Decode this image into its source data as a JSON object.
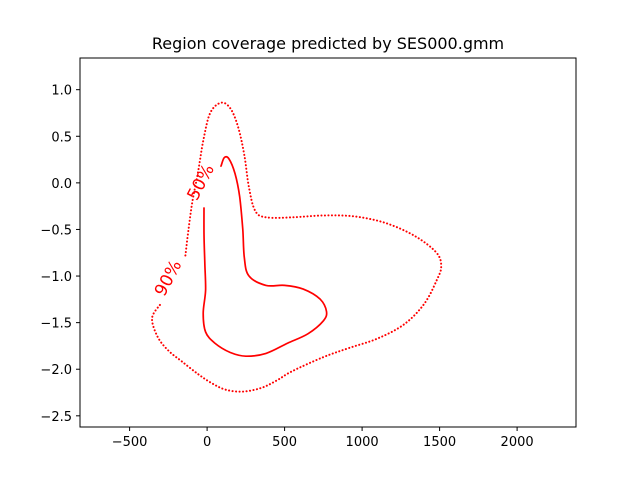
{
  "chart_data": {
    "type": "line",
    "title": "Region coverage predicted by SES000.gmm",
    "xlabel": "",
    "ylabel": "",
    "xlim": [
      -820,
      2380
    ],
    "ylim": [
      -2.62,
      1.34
    ],
    "x_ticks": [
      -500,
      0,
      500,
      1000,
      1500,
      2000
    ],
    "x_tick_labels": [
      "−500",
      "0",
      "500",
      "1000",
      "1500",
      "2000"
    ],
    "y_ticks": [
      1.0,
      0.5,
      0.0,
      -0.5,
      -1.0,
      -1.5,
      -2.0,
      -2.5
    ],
    "y_tick_labels": [
      "1.0",
      "0.5",
      "0.0",
      "−0.5",
      "−1.0",
      "−1.5",
      "−2.0",
      "−2.5"
    ],
    "grid": false,
    "line_color": "#ff0000",
    "series": [
      {
        "label": "50%",
        "style": "solid",
        "label_at": [
          -10,
          -0.02
        ],
        "points": [
          [
            -20,
            -0.27
          ],
          [
            -20,
            -0.55
          ],
          [
            -15,
            -0.85
          ],
          [
            -10,
            -1.15
          ],
          [
            -25,
            -1.4
          ],
          [
            -10,
            -1.6
          ],
          [
            50,
            -1.72
          ],
          [
            150,
            -1.82
          ],
          [
            250,
            -1.86
          ],
          [
            380,
            -1.83
          ],
          [
            520,
            -1.72
          ],
          [
            650,
            -1.62
          ],
          [
            750,
            -1.48
          ],
          [
            770,
            -1.38
          ],
          [
            730,
            -1.25
          ],
          [
            620,
            -1.14
          ],
          [
            500,
            -1.1
          ],
          [
            380,
            -1.1
          ],
          [
            270,
            -1.0
          ],
          [
            240,
            -0.8
          ],
          [
            230,
            -0.5
          ],
          [
            210,
            -0.15
          ],
          [
            180,
            0.1
          ],
          [
            140,
            0.26
          ],
          [
            110,
            0.27
          ],
          [
            90,
            0.18
          ]
        ]
      },
      {
        "label": "90%",
        "style": "dotted",
        "label_at": [
          -220,
          -1.05
        ],
        "points": [
          [
            -140,
            -0.78
          ],
          [
            -120,
            -0.5
          ],
          [
            -95,
            -0.2
          ],
          [
            -60,
            0.1
          ],
          [
            -25,
            0.45
          ],
          [
            20,
            0.75
          ],
          [
            90,
            0.86
          ],
          [
            150,
            0.8
          ],
          [
            200,
            0.6
          ],
          [
            240,
            0.3
          ],
          [
            270,
            -0.05
          ],
          [
            310,
            -0.3
          ],
          [
            380,
            -0.37
          ],
          [
            550,
            -0.37
          ],
          [
            750,
            -0.35
          ],
          [
            950,
            -0.36
          ],
          [
            1150,
            -0.43
          ],
          [
            1340,
            -0.57
          ],
          [
            1480,
            -0.75
          ],
          [
            1510,
            -0.9
          ],
          [
            1480,
            -1.05
          ],
          [
            1400,
            -1.3
          ],
          [
            1270,
            -1.52
          ],
          [
            1100,
            -1.67
          ],
          [
            920,
            -1.77
          ],
          [
            750,
            -1.87
          ],
          [
            550,
            -2.02
          ],
          [
            450,
            -2.12
          ],
          [
            350,
            -2.2
          ],
          [
            230,
            -2.24
          ],
          [
            120,
            -2.22
          ],
          [
            30,
            -2.15
          ],
          [
            -60,
            -2.05
          ],
          [
            -160,
            -1.92
          ],
          [
            -250,
            -1.8
          ],
          [
            -320,
            -1.65
          ],
          [
            -355,
            -1.45
          ],
          [
            -300,
            -1.3
          ]
        ]
      }
    ]
  }
}
